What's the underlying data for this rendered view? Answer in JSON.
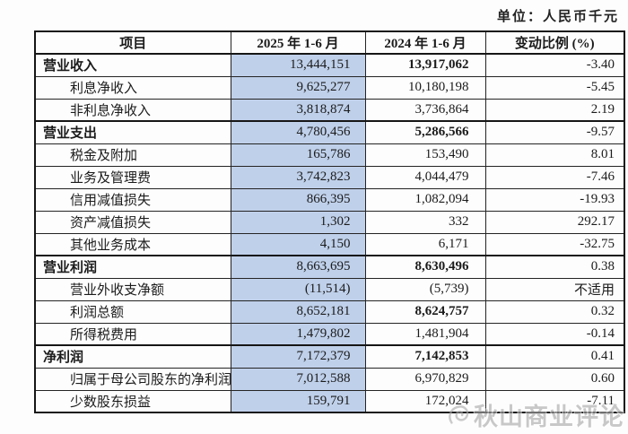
{
  "unit_note": "单位：人民币千元",
  "colors": {
    "highlight_2025_column": "#bfd0ea",
    "border": "#161616"
  },
  "table": {
    "headers": [
      "项目",
      "2025 年 1-6 月",
      "2024 年 1-6 月",
      "变动比例 (%)"
    ],
    "rows": [
      {
        "item": "营业收入",
        "v2025": "13,444,151",
        "v2024": "13,917,062",
        "change": "-3.40",
        "section": true,
        "bold2024": true
      },
      {
        "item": "利息净收入",
        "v2025": "9,625,277",
        "v2024": "10,180,198",
        "change": "-5.45",
        "section": false,
        "bold2024": false
      },
      {
        "item": "非利息净收入",
        "v2025": "3,818,874",
        "v2024": "3,736,864",
        "change": "2.19",
        "section": false,
        "bold2024": false
      },
      {
        "item": "营业支出",
        "v2025": "4,780,456",
        "v2024": "5,286,566",
        "change": "-9.57",
        "section": true,
        "bold2024": true
      },
      {
        "item": "税金及附加",
        "v2025": "165,786",
        "v2024": "153,490",
        "change": "8.01",
        "section": false,
        "bold2024": false
      },
      {
        "item": "业务及管理费",
        "v2025": "3,742,823",
        "v2024": "4,044,479",
        "change": "-7.46",
        "section": false,
        "bold2024": false
      },
      {
        "item": "信用减值损失",
        "v2025": "866,395",
        "v2024": "1,082,094",
        "change": "-19.93",
        "section": false,
        "bold2024": false
      },
      {
        "item": "资产减值损失",
        "v2025": "1,302",
        "v2024": "332",
        "change": "292.17",
        "section": false,
        "bold2024": false
      },
      {
        "item": "其他业务成本",
        "v2025": "4,150",
        "v2024": "6,171",
        "change": "-32.75",
        "section": false,
        "bold2024": false
      },
      {
        "item": "营业利润",
        "v2025": "8,663,695",
        "v2024": "8,630,496",
        "change": "0.38",
        "section": true,
        "bold2024": true
      },
      {
        "item": "营业外收支净额",
        "v2025": "(11,514)",
        "v2024": "(5,739)",
        "change": "不适用",
        "section": false,
        "bold2024": false
      },
      {
        "item": "利润总额",
        "v2025": "8,652,181",
        "v2024": "8,624,757",
        "change": "0.32",
        "section": false,
        "bold2024": true
      },
      {
        "item": "所得税费用",
        "v2025": "1,479,802",
        "v2024": "1,481,904",
        "change": "-0.14",
        "section": false,
        "bold2024": false
      },
      {
        "item": "净利润",
        "v2025": "7,172,379",
        "v2024": "7,142,853",
        "change": "0.41",
        "section": true,
        "bold2024": true
      },
      {
        "item": "归属于母公司股东的净利润",
        "v2025": "7,012,588",
        "v2024": "6,970,829",
        "change": "0.60",
        "section": false,
        "bold2024": false
      },
      {
        "item": "少数股东损益",
        "v2025": "159,791",
        "v2024": "172,024",
        "change": "-7.11",
        "section": false,
        "bold2024": false
      }
    ]
  },
  "watermark": {
    "text": "秋山商业评论"
  }
}
